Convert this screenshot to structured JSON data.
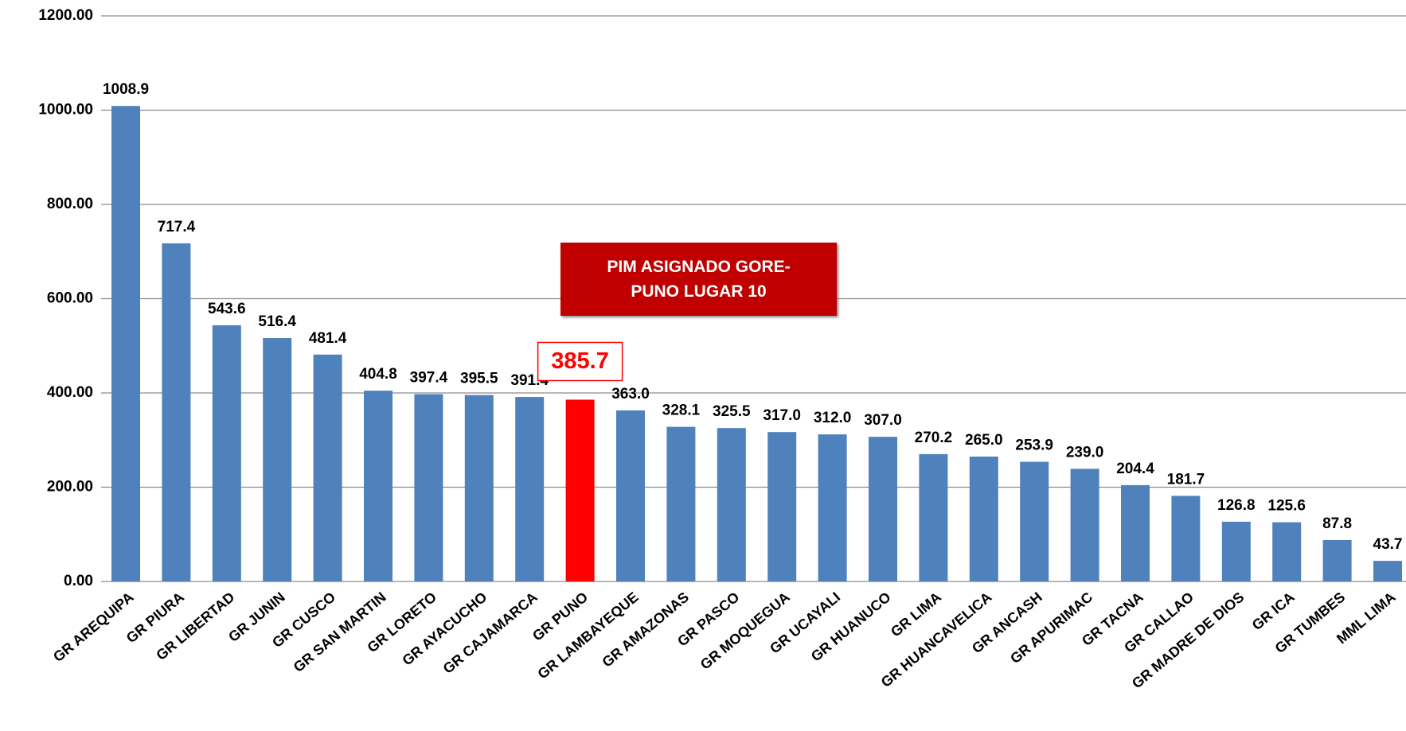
{
  "chart_data": {
    "type": "bar",
    "categories": [
      "GR AREQUIPA",
      "GR PIURA",
      "GR LIBERTAD",
      "GR JUNIN",
      "GR CUSCO",
      "GR SAN MARTIN",
      "GR LORETO",
      "GR AYACUCHO",
      "GR CAJAMARCA",
      "GR PUNO",
      "GR LAMBAYEQUE",
      "GR AMAZONAS",
      "GR PASCO",
      "GR MOQUEGUA",
      "GR UCAYALI",
      "GR HUANUCO",
      "GR LIMA",
      "GR HUANCAVELICA",
      "GR ANCASH",
      "GR APURIMAC",
      "GR TACNA",
      "GR CALLAO",
      "GR MADRE DE DIOS",
      "GR ICA",
      "GR TUMBES",
      "MML LIMA"
    ],
    "values": [
      1008.9,
      717.4,
      543.6,
      516.4,
      481.4,
      404.8,
      397.4,
      395.5,
      391.4,
      385.7,
      363.0,
      328.1,
      325.5,
      317.0,
      312.0,
      307.0,
      270.2,
      265.0,
      253.9,
      239.0,
      204.4,
      181.7,
      126.8,
      125.6,
      87.8,
      43.7
    ],
    "value_labels": [
      "1008.9",
      "717.4",
      "543.6",
      "516.4",
      "481.4",
      "404.8",
      "397.4",
      "395.5",
      "391.4",
      "385.7",
      "363.0",
      "328.1",
      "325.5",
      "317.0",
      "312.0",
      "307.0",
      "270.2",
      "265.0",
      "253.9",
      "239.0",
      "204.4",
      "181.7",
      "126.8",
      "125.6",
      "87.8",
      "43.7"
    ],
    "color": "#4f81bd",
    "colors": [
      "#4f81bd",
      "#4f81bd",
      "#4f81bd",
      "#4f81bd",
      "#4f81bd",
      "#4f81bd",
      "#4f81bd",
      "#4f81bd",
      "#4f81bd",
      "#ff0000",
      "#4f81bd",
      "#4f81bd",
      "#4f81bd",
      "#4f81bd",
      "#4f81bd",
      "#4f81bd",
      "#4f81bd",
      "#4f81bd",
      "#4f81bd",
      "#4f81bd",
      "#4f81bd",
      "#4f81bd",
      "#4f81bd",
      "#4f81bd",
      "#4f81bd",
      "#4f81bd"
    ],
    "ylim": [
      0,
      1200
    ],
    "yticks": [
      {
        "value": 0,
        "label": "0.00"
      },
      {
        "value": 200,
        "label": "200.00"
      },
      {
        "value": 400,
        "label": "400.00"
      },
      {
        "value": 600,
        "label": "600.00"
      },
      {
        "value": 800,
        "label": "800.00"
      },
      {
        "value": 1000,
        "label": "1000.00"
      },
      {
        "value": 1200,
        "label": "1200.00"
      }
    ],
    "grid": true,
    "annotations": [
      {
        "text": "PIM ASIGNADO GORE-PUNO LUGAR 10"
      }
    ]
  }
}
